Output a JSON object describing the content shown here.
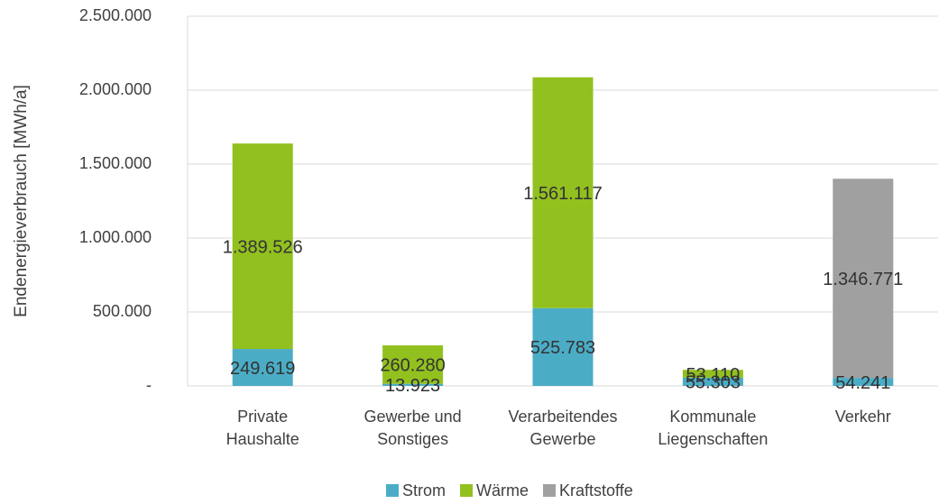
{
  "chart_data": {
    "type": "stacked_bar",
    "y_label": "Endenergieverbrauch [MWh/a]",
    "categories": [
      [
        "Private",
        "Haushalte"
      ],
      [
        "Gewerbe und",
        "Sonstiges"
      ],
      [
        "Verarbeitendes",
        "Gewerbe"
      ],
      [
        "Kommunale",
        "Liegenschaften"
      ],
      [
        "Verkehr"
      ]
    ],
    "series": [
      {
        "name": "Strom",
        "color": "#4bacc6",
        "values": [
          249619,
          13923,
          525783,
          55303,
          54241
        ],
        "value_labels": [
          "249.619",
          "13.923",
          "525.783",
          "55.303",
          "54.241"
        ]
      },
      {
        "name": "Wärme",
        "color": "#92c01f",
        "values": [
          1389526,
          260280,
          1561117,
          53110,
          null
        ],
        "value_labels": [
          "1.389.526",
          "260.280",
          "1.561.117",
          "53.110",
          null
        ]
      },
      {
        "name": "Kraftstoffe",
        "color": "#a0a0a0",
        "values": [
          null,
          null,
          null,
          null,
          1346771
        ],
        "value_labels": [
          null,
          null,
          null,
          null,
          "1.346.771"
        ]
      }
    ],
    "ylim": [
      0,
      2500000
    ],
    "yticks": [
      {
        "value": 0,
        "label": "-"
      },
      {
        "value": 500000,
        "label": "500.000"
      },
      {
        "value": 1000000,
        "label": "1.000.000"
      },
      {
        "value": 1500000,
        "label": "1.500.000"
      },
      {
        "value": 2000000,
        "label": "2.000.000"
      },
      {
        "value": 2500000,
        "label": "2.500.000"
      }
    ],
    "grid": true,
    "legend": "bottom"
  }
}
